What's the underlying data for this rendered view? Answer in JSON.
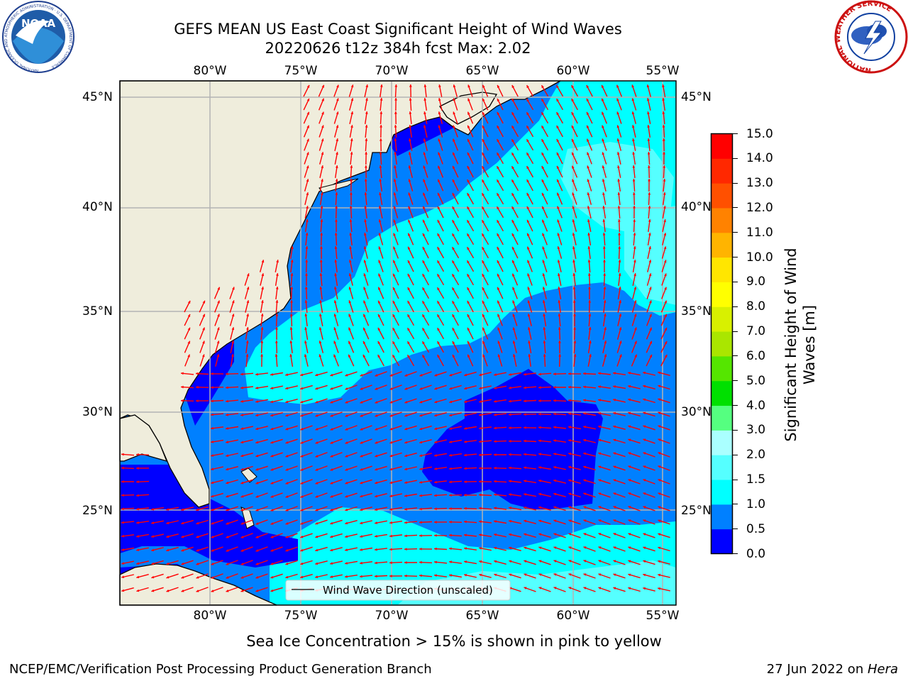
{
  "header": {
    "title_line1": "GEFS MEAN US East Coast Significant Height of Wind Waves",
    "title_line2": "20220626 t12z 384h fcst   Max: 2.02",
    "noaa_logo_text": "NOAA",
    "noaa_seal_ring": "NATIONAL OCEANIC AND ATMOSPHERIC ADMINISTRATION · U.S. DEPARTMENT OF COMMERCE",
    "nws_logo_ring": "NATIONAL WEATHER SERVICE"
  },
  "map": {
    "lon_labels": [
      "80°W",
      "75°W",
      "70°W",
      "65°W",
      "60°W",
      "55°W"
    ],
    "lat_labels": [
      "45°N",
      "40°N",
      "35°N",
      "30°N",
      "25°N"
    ],
    "lon_range": [
      -85,
      -54.5
    ],
    "lat_range": [
      20.5,
      46.5
    ],
    "legend_label": "Wind Wave Direction (unscaled)",
    "colors": {
      "land": "#efeddc",
      "coast": "#000000",
      "arrow": "#ff0000",
      "grid": "#b3b3b3"
    }
  },
  "colorbar": {
    "label_line1": "Significant Height of Wind",
    "label_line2": "Waves [m]",
    "ticks": [
      "0.0",
      "0.5",
      "1.0",
      "1.5",
      "2.0",
      "3.0",
      "4.0",
      "5.0",
      "6.0",
      "7.0",
      "8.0",
      "9.0",
      "10.0",
      "11.0",
      "12.0",
      "13.0",
      "14.0",
      "15.0"
    ],
    "colors": [
      "#0000ff",
      "#0080ff",
      "#00ffff",
      "#55ffff",
      "#aaffff",
      "#55ff80",
      "#00e000",
      "#55e600",
      "#aae600",
      "#d8f000",
      "#ffff00",
      "#ffe600",
      "#ffb400",
      "#ff8200",
      "#ff5000",
      "#ff2800",
      "#ff0000"
    ]
  },
  "footer": {
    "note": "Sea Ice Concentration > 15% is shown in pink to yellow",
    "credit": "NCEP/EMC/Verification Post Processing Product Generation Branch",
    "date": "27 Jun 2022 on ",
    "machine": "Hera"
  }
}
